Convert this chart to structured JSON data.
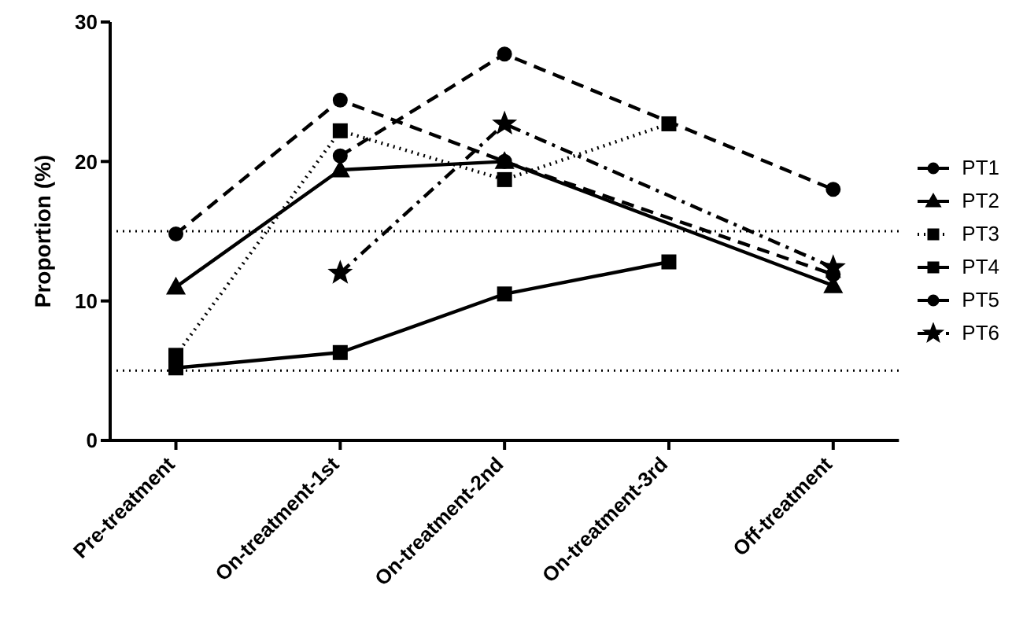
{
  "chart_data": {
    "type": "line",
    "ylabel": "Proportion (%)",
    "categories": [
      "Pre-treatment",
      "On-treatment-1st",
      "On-treatment-2nd",
      "On-treatment-3rd",
      "Off-treatment"
    ],
    "series": [
      {
        "name": "PT1",
        "color": "#000000",
        "marker": "circle",
        "line_style": "dashed",
        "values": [
          14.8,
          24.4,
          20.0,
          null,
          11.9
        ]
      },
      {
        "name": "PT2",
        "color": "#000000",
        "marker": "triangle",
        "line_style": "solid",
        "values": [
          11.0,
          19.4,
          20.0,
          null,
          11.1
        ]
      },
      {
        "name": "PT3",
        "color": "#000000",
        "marker": "square",
        "line_style": "dotted",
        "values": [
          6.1,
          22.2,
          18.7,
          22.7,
          null
        ]
      },
      {
        "name": "PT4",
        "color": "#000000",
        "marker": "square",
        "line_style": "solid",
        "values": [
          5.2,
          6.3,
          10.5,
          12.8,
          null
        ]
      },
      {
        "name": "PT5",
        "color": "#000000",
        "marker": "circle",
        "line_style": "dashed",
        "values": [
          null,
          20.4,
          27.7,
          null,
          18.0
        ]
      },
      {
        "name": "PT6",
        "color": "#000000",
        "marker": "star",
        "line_style": "dashdot",
        "values": [
          null,
          12.0,
          22.7,
          null,
          12.4
        ]
      }
    ],
    "ylim": [
      0,
      30
    ],
    "yticks": [
      0,
      10,
      20,
      30
    ],
    "grid": false,
    "legend": "right",
    "ref_lines": [
      {
        "axis": "y",
        "value": 5,
        "line_style": "dotted"
      },
      {
        "axis": "y",
        "value": 15,
        "line_style": "dotted"
      }
    ]
  }
}
